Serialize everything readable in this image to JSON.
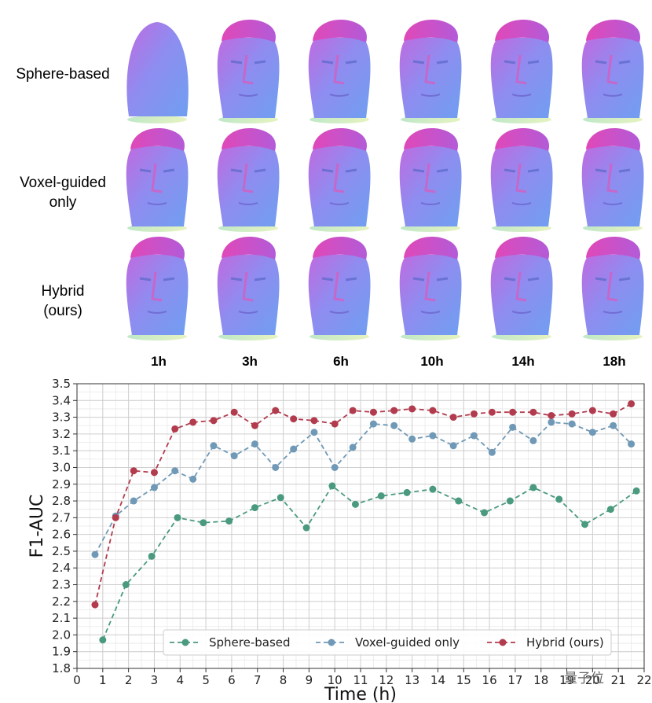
{
  "figure": {
    "row_labels": [
      [
        "Sphere-based"
      ],
      [
        "Voxel-guided",
        "only"
      ],
      [
        "Hybrid",
        "(ours)"
      ]
    ],
    "column_labels": [
      "1h",
      "3h",
      "6h",
      "10h",
      "14h",
      "18h"
    ]
  },
  "watermark": "量子位",
  "chart_data": {
    "type": "line",
    "xlabel": "Time (h)",
    "ylabel": "F1-AUC",
    "xlim": [
      0,
      22
    ],
    "ylim": [
      1.8,
      3.5
    ],
    "xticks": [
      0,
      1,
      2,
      3,
      4,
      5,
      6,
      7,
      8,
      9,
      10,
      11,
      12,
      13,
      14,
      15,
      16,
      17,
      18,
      19,
      20,
      21,
      22
    ],
    "yticks": [
      1.8,
      1.9,
      2.0,
      2.1,
      2.2,
      2.3,
      2.4,
      2.5,
      2.6,
      2.7,
      2.8,
      2.9,
      3.0,
      3.1,
      3.2,
      3.3,
      3.4,
      3.5
    ],
    "grid": true,
    "legend_position": "bottom",
    "series": [
      {
        "name": "Sphere-based",
        "color": "#4a9a7e",
        "x": [
          1.0,
          1.9,
          2.9,
          3.9,
          4.9,
          5.9,
          6.9,
          7.9,
          8.9,
          9.9,
          10.8,
          11.8,
          12.8,
          13.8,
          14.8,
          15.8,
          16.8,
          17.7,
          18.7,
          19.7,
          20.7,
          21.7
        ],
        "y": [
          1.97,
          2.3,
          2.47,
          2.7,
          2.67,
          2.68,
          2.76,
          2.82,
          2.64,
          2.89,
          2.78,
          2.83,
          2.85,
          2.87,
          2.8,
          2.73,
          2.8,
          2.88,
          2.81,
          2.66,
          2.75,
          2.86
        ]
      },
      {
        "name": "Voxel-guided only",
        "color": "#6f99b6",
        "x": [
          0.7,
          1.5,
          2.2,
          3.0,
          3.8,
          4.5,
          5.3,
          6.1,
          6.9,
          7.7,
          8.4,
          9.2,
          10.0,
          10.7,
          11.5,
          12.3,
          13.0,
          13.8,
          14.6,
          15.4,
          16.1,
          16.9,
          17.7,
          18.4,
          19.2,
          20.0,
          20.8,
          21.5
        ],
        "y": [
          2.48,
          2.71,
          2.8,
          2.88,
          2.98,
          2.93,
          3.13,
          3.07,
          3.14,
          3.0,
          3.11,
          3.21,
          3.0,
          3.12,
          3.26,
          3.25,
          3.17,
          3.19,
          3.13,
          3.19,
          3.09,
          3.24,
          3.16,
          3.27,
          3.26,
          3.21,
          3.25,
          3.14
        ]
      },
      {
        "name": "Hybrid (ours)",
        "color": "#b23b4e",
        "x": [
          0.7,
          1.5,
          2.2,
          3.0,
          3.8,
          4.5,
          5.3,
          6.1,
          6.9,
          7.7,
          8.4,
          9.2,
          10.0,
          10.7,
          11.5,
          12.3,
          13.0,
          13.8,
          14.6,
          15.4,
          16.1,
          16.9,
          17.7,
          18.4,
          19.2,
          20.0,
          20.8,
          21.5
        ],
        "y": [
          2.18,
          2.7,
          2.98,
          2.97,
          3.23,
          3.27,
          3.28,
          3.33,
          3.25,
          3.34,
          3.29,
          3.28,
          3.26,
          3.34,
          3.33,
          3.34,
          3.35,
          3.34,
          3.3,
          3.32,
          3.33,
          3.33,
          3.33,
          3.31,
          3.32,
          3.34,
          3.32,
          3.38
        ]
      }
    ]
  }
}
